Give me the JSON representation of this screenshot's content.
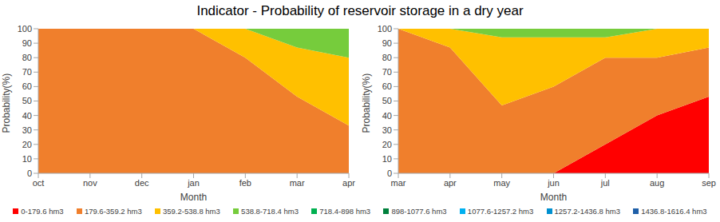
{
  "chart_data": [
    {
      "type": "area",
      "title": "Indicator - Probability of reservoir storage in a dry year",
      "x_label": "Month",
      "y_label": "Probability(%)",
      "stacked": true,
      "grid": false,
      "categories": [
        "oct",
        "nov",
        "dec",
        "jan",
        "feb",
        "mar",
        "apr"
      ],
      "ylim": [
        0,
        100
      ],
      "yticks": [
        0,
        10,
        20,
        30,
        40,
        50,
        60,
        70,
        80,
        90,
        100
      ],
      "series": [
        {
          "name": "0-179.6 hm3",
          "color": "#ff0000",
          "values": [
            0,
            0,
            0,
            0,
            0,
            0,
            0
          ]
        },
        {
          "name": "179.6-359.2 hm3",
          "color": "#f07f2c",
          "values": [
            100,
            100,
            100,
            100,
            80,
            53,
            33
          ]
        },
        {
          "name": "359.2-538.8 hm3",
          "color": "#ffc000",
          "values": [
            0,
            0,
            0,
            0,
            20,
            34,
            47
          ]
        },
        {
          "name": "538.8-718.4 hm3",
          "color": "#76cc3c",
          "values": [
            0,
            0,
            0,
            0,
            0,
            13,
            20
          ]
        },
        {
          "name": "718.4-898 hm3",
          "color": "#00b050",
          "values": [
            0,
            0,
            0,
            0,
            0,
            0,
            0
          ]
        },
        {
          "name": "898-1077.6 hm3",
          "color": "#00803c",
          "values": [
            0,
            0,
            0,
            0,
            0,
            0,
            0
          ]
        },
        {
          "name": "1077.6-1257.2 hm3",
          "color": "#00b0f0",
          "values": [
            0,
            0,
            0,
            0,
            0,
            0,
            0
          ]
        },
        {
          "name": "1257.2-1436.8 hm3",
          "color": "#0090d0",
          "values": [
            0,
            0,
            0,
            0,
            0,
            0,
            0
          ]
        },
        {
          "name": "1436.8-1616.4 hm3",
          "color": "#1f5fa8",
          "values": [
            0,
            0,
            0,
            0,
            0,
            0,
            0
          ]
        }
      ]
    },
    {
      "type": "area",
      "x_label": "Month",
      "y_label": "Probability(%)",
      "stacked": true,
      "grid": false,
      "categories": [
        "mar",
        "apr",
        "may",
        "jun",
        "jul",
        "aug",
        "sep"
      ],
      "ylim": [
        0,
        100
      ],
      "yticks": [
        0,
        10,
        20,
        30,
        40,
        50,
        60,
        70,
        80,
        90,
        100
      ],
      "series": [
        {
          "name": "0-179.6 hm3",
          "color": "#ff0000",
          "values": [
            0,
            0,
            0,
            0,
            20,
            40,
            53
          ]
        },
        {
          "name": "179.6-359.2 hm3",
          "color": "#f07f2c",
          "values": [
            100,
            87,
            47,
            60,
            60,
            40,
            34
          ]
        },
        {
          "name": "359.2-538.8 hm3",
          "color": "#ffc000",
          "values": [
            0,
            13,
            47,
            34,
            14,
            20,
            13
          ]
        },
        {
          "name": "538.8-718.4 hm3",
          "color": "#76cc3c",
          "values": [
            0,
            0,
            6,
            6,
            6,
            0,
            0
          ]
        },
        {
          "name": "718.4-898 hm3",
          "color": "#00b050",
          "values": [
            0,
            0,
            0,
            0,
            0,
            0,
            0
          ]
        },
        {
          "name": "898-1077.6 hm3",
          "color": "#00803c",
          "values": [
            0,
            0,
            0,
            0,
            0,
            0,
            0
          ]
        },
        {
          "name": "1077.6-1257.2 hm3",
          "color": "#00b0f0",
          "values": [
            0,
            0,
            0,
            0,
            0,
            0,
            0
          ]
        },
        {
          "name": "1257.2-1436.8 hm3",
          "color": "#0090d0",
          "values": [
            0,
            0,
            0,
            0,
            0,
            0,
            0
          ]
        },
        {
          "name": "1436.8-1616.4 hm3",
          "color": "#1f5fa8",
          "values": [
            0,
            0,
            0,
            0,
            0,
            0,
            0
          ]
        }
      ]
    }
  ]
}
